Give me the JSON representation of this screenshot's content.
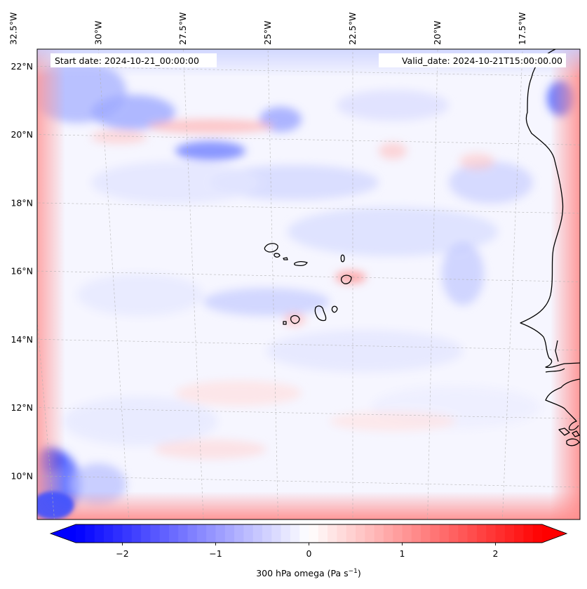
{
  "map": {
    "projection": "Lambert conformal",
    "extent": {
      "lon_min": -33.0,
      "lon_max": -16.0,
      "lat_min": 9.0,
      "lat_max": 23.0
    },
    "lon_ticks": [
      {
        "value": -32.5,
        "label": "32.5°W"
      },
      {
        "value": -30.0,
        "label": "30°W"
      },
      {
        "value": -27.5,
        "label": "27.5°W"
      },
      {
        "value": -25.0,
        "label": "25°W"
      },
      {
        "value": -22.5,
        "label": "22.5°W"
      },
      {
        "value": -20.0,
        "label": "20°W"
      },
      {
        "value": -17.5,
        "label": "17.5°W"
      }
    ],
    "lat_ticks": [
      {
        "value": 10,
        "label": "10°N"
      },
      {
        "value": 12,
        "label": "12°N"
      },
      {
        "value": 14,
        "label": "14°N"
      },
      {
        "value": 16,
        "label": "16°N"
      },
      {
        "value": 18,
        "label": "18°N"
      },
      {
        "value": 20,
        "label": "20°N"
      },
      {
        "value": 22,
        "label": "22°N"
      }
    ],
    "gridlines": true,
    "coastlines": true,
    "start_date_label": "Start date: 2024-10-21_00:00:00",
    "valid_date_label": "Valid_date: 2024-10-21T15:00:00.00",
    "field": "300 hPa omega",
    "colormap": "bwr"
  },
  "colorbar": {
    "vmin": -2.5,
    "vmax": 2.5,
    "extend": "both",
    "ticks": [
      {
        "value": -2,
        "label": "−2"
      },
      {
        "value": -1,
        "label": "−1"
      },
      {
        "value": 0,
        "label": "0"
      },
      {
        "value": 1,
        "label": "1"
      },
      {
        "value": 2,
        "label": "2"
      }
    ],
    "label": "300 hPa omega (Pa s",
    "label_superscript": "−1",
    "label_suffix": ")",
    "color_low": "#0000ff",
    "color_mid": "#ffffff",
    "color_high": "#ff0000"
  }
}
